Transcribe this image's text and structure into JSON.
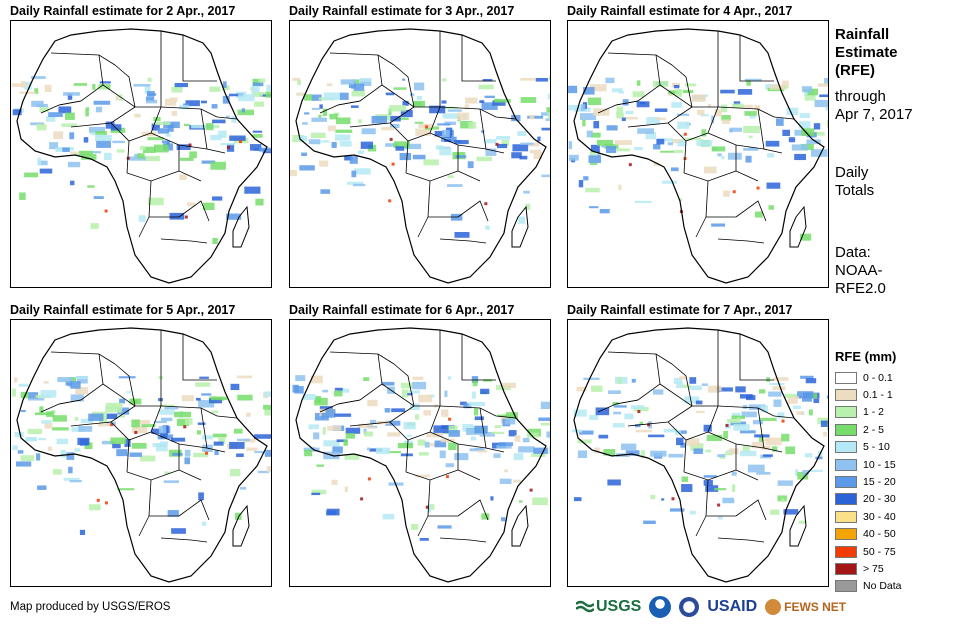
{
  "panels": [
    {
      "title": "Daily Rainfall estimate for 2 Apr., 2017"
    },
    {
      "title": "Daily Rainfall estimate for 3 Apr., 2017"
    },
    {
      "title": "Daily Rainfall estimate for 4 Apr., 2017"
    },
    {
      "title": "Daily Rainfall estimate for 5 Apr., 2017"
    },
    {
      "title": "Daily Rainfall estimate for 6 Apr., 2017"
    },
    {
      "title": "Daily Rainfall estimate for 7 Apr., 2017"
    }
  ],
  "side": {
    "title_line1": "Rainfall",
    "title_line2": "Estimate",
    "title_line3": "(RFE)",
    "through_line1": "through",
    "through_line2": "Apr 7, 2017",
    "daily_line1": "Daily",
    "daily_line2": "Totals",
    "data_line1": "Data:",
    "data_line2": "NOAA-",
    "data_line3": "RFE2.0"
  },
  "legend": {
    "title": "RFE (mm)",
    "items": [
      {
        "label": "0 - 0.1",
        "color": "#ffffff"
      },
      {
        "label": "0.1 - 1",
        "color": "#ecdcc0"
      },
      {
        "label": "1 - 2",
        "color": "#b8f0ad"
      },
      {
        "label": "2 - 5",
        "color": "#76dd6a"
      },
      {
        "label": "5 - 10",
        "color": "#b5e9f5"
      },
      {
        "label": "10 - 15",
        "color": "#8ec2f0"
      },
      {
        "label": "15 - 20",
        "color": "#5a9ae8"
      },
      {
        "label": "20 - 30",
        "color": "#2b64d8"
      },
      {
        "label": "30 - 40",
        "color": "#fbe08a"
      },
      {
        "label": "40 - 50",
        "color": "#f4a400"
      },
      {
        "label": "50 - 75",
        "color": "#f03c00"
      },
      {
        "label": "> 75",
        "color": "#a41616"
      },
      {
        "label": "No Data",
        "color": "#999999"
      }
    ]
  },
  "footer": {
    "credit": "Map produced by USGS/EROS",
    "logos": {
      "usgs": "USGS",
      "usaid": "USAID",
      "fews": "FEWS NET"
    }
  }
}
